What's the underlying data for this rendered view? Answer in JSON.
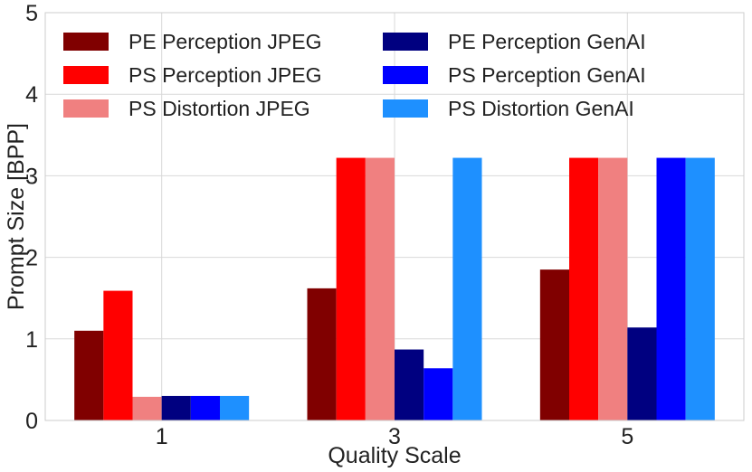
{
  "chart_data": {
    "type": "bar",
    "title": "",
    "xlabel": "Quality Scale",
    "ylabel": "Prompt Size [BPP]",
    "categories": [
      "1",
      "3",
      "5"
    ],
    "ylim": [
      0,
      5
    ],
    "yticks": [
      "0",
      "1",
      "2",
      "3",
      "4",
      "5"
    ],
    "grid": true,
    "legend_position": "top",
    "legend_columns": 2,
    "series": [
      {
        "name": "PE Perception JPEG",
        "color": "#800000",
        "values": [
          1.1,
          1.62,
          1.85
        ]
      },
      {
        "name": "PS Perception JPEG",
        "color": "#ff0000",
        "values": [
          1.59,
          3.22,
          3.22
        ]
      },
      {
        "name": "PS Distortion JPEG",
        "color": "#f08080",
        "values": [
          0.29,
          3.22,
          3.22
        ]
      },
      {
        "name": "PE Perception GenAI",
        "color": "#000080",
        "values": [
          0.3,
          0.87,
          1.14
        ]
      },
      {
        "name": "PS Perception GenAI",
        "color": "#0000ff",
        "values": [
          0.3,
          0.64,
          3.22
        ]
      },
      {
        "name": "PS Distortion GenAI",
        "color": "#1e90ff",
        "values": [
          0.3,
          3.22,
          3.22
        ]
      }
    ]
  }
}
